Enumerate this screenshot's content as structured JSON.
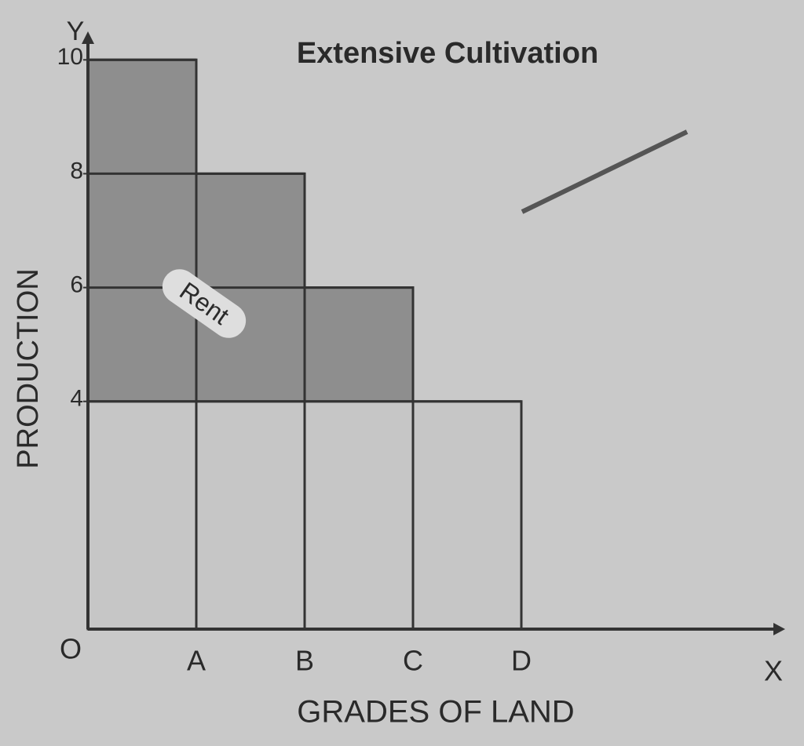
{
  "chart_data": {
    "type": "bar",
    "title": "Extensive Cultivation",
    "x_label": "GRADES OF LAND",
    "y_label": "PRODUCTION",
    "y_axis_letter": "Y",
    "x_axis_letter": "X",
    "origin_label": "O",
    "categories": [
      null,
      null,
      null,
      null
    ],
    "boundary_labels": [
      "A",
      "B",
      "C",
      "D"
    ],
    "values": [
      10,
      8,
      6,
      4
    ],
    "ylim": [
      0,
      10.5
    ],
    "yticks": [
      4,
      6,
      8,
      10
    ],
    "annotation": "Rent",
    "colors": {
      "bar": "#c6c6c6",
      "rent": "#8e8e8e"
    }
  }
}
